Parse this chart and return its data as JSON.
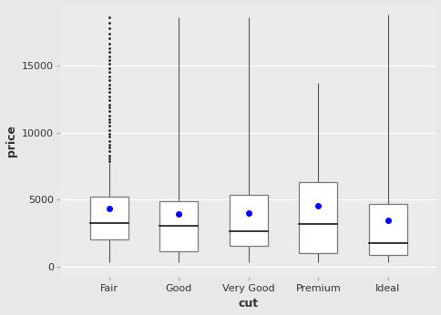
{
  "categories": [
    "Fair",
    "Good",
    "Very Good",
    "Premium",
    "Ideal"
  ],
  "xlabel": "cut",
  "ylabel": "price",
  "ylim": [
    -700,
    19500
  ],
  "yticks": [
    0,
    5000,
    10000,
    15000
  ],
  "ytick_labels": [
    "0",
    "5000",
    "10000",
    "15000"
  ],
  "bg_color": "#EBEBEB",
  "box_color": "white",
  "box_edge_color": "#7A7A7A",
  "median_color": "#2A2A2A",
  "whisker_color": "#555555",
  "mean_color": "#0000FF",
  "mean_size": 4,
  "grid_color": "white",
  "boxes": [
    {
      "q1": 2050,
      "median": 3282,
      "q3": 5206,
      "whisker_low": 337,
      "whisker_high": 7770,
      "mean": 4359,
      "outliers": [
        7900,
        8100,
        8300,
        8600,
        8900,
        9100,
        9400,
        9700,
        9900,
        10200,
        10500,
        10800,
        11000,
        11300,
        11600,
        11900,
        12100,
        12400,
        12700,
        13000,
        13300,
        13600,
        13900,
        14200,
        14500,
        14800,
        15100,
        15400,
        15700,
        16000,
        16300,
        16600,
        17000,
        17400,
        17800,
        18200,
        18600
      ]
    },
    {
      "q1": 1145,
      "median": 3050,
      "q3": 4906,
      "whisker_low": 327,
      "whisker_high": 18600,
      "mean": 3929,
      "outliers": []
    },
    {
      "q1": 1588,
      "median": 2648,
      "q3": 5373,
      "whisker_low": 336,
      "whisker_high": 18600,
      "mean": 3982,
      "outliers": []
    },
    {
      "q1": 1046,
      "median": 3185,
      "q3": 6296,
      "whisker_low": 326,
      "whisker_high": 13700,
      "mean": 4584,
      "outliers": []
    },
    {
      "q1": 878,
      "median": 1810,
      "q3": 4678,
      "whisker_low": 326,
      "whisker_high": 18800,
      "mean": 3458,
      "outliers": []
    }
  ],
  "box_width": 0.55,
  "flier_marker": ".",
  "flier_size": 2.0,
  "flier_color": "#222222",
  "axis_label_fontsize": 9,
  "tick_fontsize": 8,
  "outer_bg": "#E8E8E8",
  "figsize": [
    4.85,
    3.46
  ],
  "dpi": 100
}
